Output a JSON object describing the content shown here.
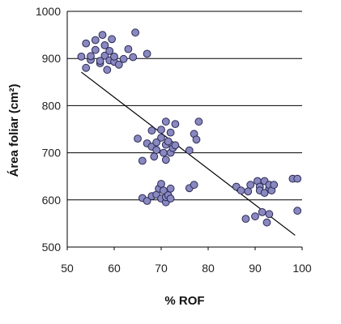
{
  "chart_data": {
    "type": "scatter",
    "xlabel": "% ROF",
    "ylabel": "Área foliar (cm²)",
    "xlim": [
      50,
      100
    ],
    "ylim": [
      500,
      1000
    ],
    "x_ticks": [
      "50",
      "60",
      "70",
      "80",
      "90",
      "100"
    ],
    "y_ticks": [
      "500",
      "600",
      "700",
      "800",
      "900",
      "1000"
    ],
    "grid": "horizontal",
    "point_color": "#8a88c0",
    "point_edge_color": "#2a2a55",
    "series": [
      {
        "points": [
          [
            53,
            904
          ],
          [
            54,
            932
          ],
          [
            54,
            880
          ],
          [
            55,
            897
          ],
          [
            55,
            905
          ],
          [
            56,
            918
          ],
          [
            56,
            939
          ],
          [
            57,
            890
          ],
          [
            57,
            895
          ],
          [
            57.5,
            950
          ],
          [
            58,
            906
          ],
          [
            58,
            928
          ],
          [
            58.5,
            876
          ],
          [
            59,
            896
          ],
          [
            59,
            916
          ],
          [
            59.5,
            941
          ],
          [
            60,
            893
          ],
          [
            60,
            904
          ],
          [
            61,
            887
          ],
          [
            62,
            899
          ],
          [
            63,
            920
          ],
          [
            64,
            903
          ],
          [
            64.5,
            955
          ],
          [
            67,
            910
          ],
          [
            65,
            730
          ],
          [
            66,
            683
          ],
          [
            67,
            720
          ],
          [
            68,
            747
          ],
          [
            68,
            713
          ],
          [
            68.5,
            692
          ],
          [
            69,
            706
          ],
          [
            69,
            722
          ],
          [
            70,
            749
          ],
          [
            70,
            732
          ],
          [
            70.5,
            700
          ],
          [
            71,
            685
          ],
          [
            71,
            717
          ],
          [
            71,
            766
          ],
          [
            71.5,
            724
          ],
          [
            72,
            743
          ],
          [
            72,
            700
          ],
          [
            72.5,
            710
          ],
          [
            73,
            761
          ],
          [
            73,
            716
          ],
          [
            76,
            705
          ],
          [
            77,
            740
          ],
          [
            77.5,
            728
          ],
          [
            78,
            766
          ],
          [
            66,
            604
          ],
          [
            67,
            598
          ],
          [
            68,
            608
          ],
          [
            69,
            611
          ],
          [
            69.5,
            624
          ],
          [
            70,
            603
          ],
          [
            70,
            634
          ],
          [
            70.5,
            620
          ],
          [
            71,
            595
          ],
          [
            71,
            606
          ],
          [
            71.5,
            610
          ],
          [
            72,
            603
          ],
          [
            72,
            624
          ],
          [
            76,
            625
          ],
          [
            77,
            632
          ],
          [
            86,
            628
          ],
          [
            87,
            620
          ],
          [
            88,
            560
          ],
          [
            88.5,
            618
          ],
          [
            89,
            632
          ],
          [
            90,
            565
          ],
          [
            90.5,
            640
          ],
          [
            91,
            628
          ],
          [
            91,
            620
          ],
          [
            91.5,
            574
          ],
          [
            92,
            640
          ],
          [
            92,
            615
          ],
          [
            92.5,
            552
          ],
          [
            93,
            625
          ],
          [
            93,
            632
          ],
          [
            93,
            570
          ],
          [
            93.5,
            620
          ],
          [
            94,
            632
          ],
          [
            98,
            645
          ],
          [
            99,
            577
          ],
          [
            99,
            645
          ]
        ]
      }
    ],
    "trendline": {
      "x": [
        53,
        98.5
      ],
      "y": [
        871,
        525
      ]
    }
  }
}
